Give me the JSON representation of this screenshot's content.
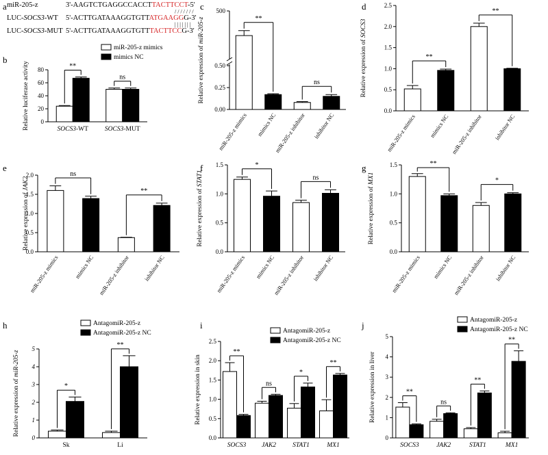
{
  "figure": {
    "styles": {
      "bar_open": "#ffffff",
      "bar_filled": "#000000",
      "axis": "#000000",
      "seq_highlight": "#d62728"
    },
    "panels": {
      "a": {
        "letter": "a",
        "rows": [
          {
            "label_pre": "miR-205-z",
            "label_italic": "",
            "label_post": "",
            "seq_pre": "3'-AAGTCTGAGGCCACCT",
            "seq_hl": "TACTTCCT",
            "seq_post": "-5'"
          },
          {
            "label_pre": "LUC-",
            "label_italic": "SOCS3",
            "label_post": "-WT",
            "seq_pre": "5'-ACTTGATAAAGGTGTT",
            "seq_hl": "ATGAAGG",
            "seq_post": "G-3'"
          },
          {
            "label_pre": "LUC-",
            "label_italic": "SOCS3",
            "label_post": "-MUT",
            "seq_pre": "5'-ACTTGATAAAGGTGTT",
            "seq_hl": "TACTTCC",
            "seq_post": "G-3'"
          }
        ],
        "pairing_marks": "/ / / / / / /",
        "pairing_marks_2": "| | | | | | |"
      }
    }
  },
  "chart_data": [
    {
      "panel": "b",
      "type": "bar",
      "ylabel": "Relative luciferase activity",
      "ylabel_italic": "",
      "ylim": [
        0,
        80
      ],
      "yticks": [
        "0",
        "20",
        "40",
        "60",
        "80"
      ],
      "categories": [
        {
          "pre": "",
          "it": "SOCS3",
          "post": "-WT"
        },
        {
          "pre": "",
          "it": "SOCS3",
          "post": "-MUT"
        }
      ],
      "series": [
        {
          "name": "miR-205-z mimics",
          "style": "open",
          "values": [
            24,
            50
          ],
          "errors": [
            1,
            2
          ]
        },
        {
          "name": "mimics NC",
          "style": "filled",
          "values": [
            67,
            50
          ],
          "errors": [
            2,
            2
          ]
        }
      ],
      "sig": [
        {
          "a": [
            0,
            0
          ],
          "b": [
            0,
            1
          ],
          "label": "**"
        },
        {
          "a": [
            1,
            0
          ],
          "b": [
            1,
            1
          ],
          "label": "ns"
        }
      ]
    },
    {
      "panel": "c",
      "type": "bar",
      "broken": true,
      "ylabel": "Relative expression of ",
      "ylabel_italic": "miR-205-z",
      "ylim": [
        0,
        0.5
      ],
      "ylim_upper": [
        400,
        500
      ],
      "yticks": [
        "0.00",
        "0.25",
        "0.50"
      ],
      "yticks_upper": [
        "500"
      ],
      "categories_rot": [
        "miR-205-z mimics",
        "mimics NC",
        "miR-205-z inhibitor",
        "inhibitor NC"
      ],
      "bars": [
        {
          "value": 450,
          "error": 10,
          "style": "open"
        },
        {
          "value": 0.17,
          "error": 0.01,
          "style": "filled"
        },
        {
          "value": 0.08,
          "error": 0.01,
          "style": "open"
        },
        {
          "value": 0.15,
          "error": 0.02,
          "style": "filled"
        }
      ],
      "sig": [
        {
          "a": 0,
          "b": 1,
          "label": "**"
        },
        {
          "a": 2,
          "b": 3,
          "label": "ns"
        }
      ]
    },
    {
      "panel": "d",
      "type": "bar",
      "ylabel": "Relative expression of ",
      "ylabel_italic": "SOCS3",
      "ylim": [
        0,
        2.5
      ],
      "yticks": [
        "0.0",
        "0.5",
        "1.0",
        "1.5",
        "2.0",
        "2.5"
      ],
      "categories_rot": [
        "miR-205-z mimics",
        "mimics NC",
        "miR-205-z inhibitor",
        "inhibitor NC"
      ],
      "bars": [
        {
          "value": 0.52,
          "error": 0.08,
          "style": "open"
        },
        {
          "value": 0.96,
          "error": 0.03,
          "style": "filled"
        },
        {
          "value": 2.0,
          "error": 0.08,
          "style": "open"
        },
        {
          "value": 1.0,
          "error": 0.01,
          "style": "filled"
        }
      ],
      "sig": [
        {
          "a": 0,
          "b": 1,
          "label": "**"
        },
        {
          "a": 2,
          "b": 3,
          "label": "**"
        }
      ]
    },
    {
      "panel": "e",
      "type": "bar",
      "ylabel": "Relative expression of ",
      "ylabel_italic": "JAK2",
      "ylim": [
        0,
        2.0
      ],
      "yticks": [
        "0.0",
        "0.5",
        "1.0",
        "1.5",
        "2.0"
      ],
      "categories_rot": [
        "miR-205-z mimics",
        "mimics NC",
        "miR-205-z inhibitor",
        "inhibitor NC"
      ],
      "bars": [
        {
          "value": 1.6,
          "error": 0.12,
          "style": "open"
        },
        {
          "value": 1.39,
          "error": 0.06,
          "style": "filled"
        },
        {
          "value": 0.37,
          "error": 0.01,
          "style": "open"
        },
        {
          "value": 1.21,
          "error": 0.06,
          "style": "filled"
        }
      ],
      "sig": [
        {
          "a": 0,
          "b": 1,
          "label": "ns"
        },
        {
          "a": 2,
          "b": 3,
          "label": "**"
        }
      ]
    },
    {
      "panel": "f",
      "type": "bar",
      "ylabel": "Relative expression of ",
      "ylabel_italic": "STAT1",
      "ylim": [
        0,
        1.5
      ],
      "yticks": [
        "0.0",
        "0.5",
        "1.0",
        "1.5"
      ],
      "categories_rot": [
        "miR-205-z mimics",
        "mimics NC",
        "miR-205-z inhibitor",
        "inhibitor NC"
      ],
      "bars": [
        {
          "value": 1.25,
          "error": 0.04,
          "style": "open"
        },
        {
          "value": 0.96,
          "error": 0.09,
          "style": "filled"
        },
        {
          "value": 0.85,
          "error": 0.04,
          "style": "open"
        },
        {
          "value": 1.01,
          "error": 0.06,
          "style": "filled"
        }
      ],
      "sig": [
        {
          "a": 0,
          "b": 1,
          "label": "*"
        },
        {
          "a": 2,
          "b": 3,
          "label": "ns"
        }
      ]
    },
    {
      "panel": "g",
      "type": "bar",
      "ylabel": "Relative expression of ",
      "ylabel_italic": "MX1",
      "ylim": [
        0,
        1.5
      ],
      "yticks": [
        "0.0",
        "0.5",
        "1.0",
        "1.5"
      ],
      "categories_rot": [
        "miR-205-z mimics",
        "mimics NC",
        "miR-205-z inhibitor",
        "inhibitor NC"
      ],
      "bars": [
        {
          "value": 1.3,
          "error": 0.05,
          "style": "open"
        },
        {
          "value": 0.97,
          "error": 0.03,
          "style": "filled"
        },
        {
          "value": 0.8,
          "error": 0.05,
          "style": "open"
        },
        {
          "value": 1.0,
          "error": 0.02,
          "style": "filled"
        }
      ],
      "sig": [
        {
          "a": 0,
          "b": 1,
          "label": "**"
        },
        {
          "a": 2,
          "b": 3,
          "label": "*"
        }
      ]
    },
    {
      "panel": "h",
      "type": "bar",
      "ylabel": "Relative expression of ",
      "ylabel_italic": "miR-205-z",
      "ylim": [
        0,
        5
      ],
      "yticks": [
        "0",
        "1",
        "2",
        "3",
        "4",
        "5"
      ],
      "italic_ticks": true,
      "categories": [
        {
          "pre": "Sk",
          "it": "",
          "post": ""
        },
        {
          "pre": "Li",
          "it": "",
          "post": ""
        }
      ],
      "series": [
        {
          "name": "AntagomiR-205-z",
          "style": "open",
          "values": [
            0.38,
            0.3
          ],
          "errors": [
            0.06,
            0.08
          ]
        },
        {
          "name": "AntagomiR-205-z NC",
          "style": "filled",
          "values": [
            2.05,
            4.0
          ],
          "errors": [
            0.25,
            0.62
          ]
        }
      ],
      "sig": [
        {
          "a": [
            0,
            0
          ],
          "b": [
            0,
            1
          ],
          "label": "*"
        },
        {
          "a": [
            1,
            0
          ],
          "b": [
            1,
            1
          ],
          "label": "**"
        }
      ]
    },
    {
      "panel": "i",
      "type": "bar",
      "ylabel": "Relative expression in skin",
      "ylabel_italic": "",
      "ylim": [
        0,
        2.5
      ],
      "yticks": [
        "0.0",
        "0.5",
        "1.0",
        "1.5",
        "2.0",
        "2.5"
      ],
      "categories": [
        {
          "pre": "",
          "it": "SOCS3",
          "post": ""
        },
        {
          "pre": "",
          "it": "JAK2",
          "post": ""
        },
        {
          "pre": "",
          "it": "STAT1",
          "post": ""
        },
        {
          "pre": "",
          "it": "MX1",
          "post": ""
        }
      ],
      "series": [
        {
          "name": "AntagomiR-205-z",
          "style": "open",
          "values": [
            1.72,
            0.9,
            0.77,
            0.7
          ],
          "errors": [
            0.23,
            0.05,
            0.12,
            0.29
          ]
        },
        {
          "name": "AntagomiR-205-z  NC",
          "style": "filled",
          "values": [
            0.58,
            1.1,
            1.32,
            1.63
          ],
          "errors": [
            0.03,
            0.03,
            0.1,
            0.04
          ]
        }
      ],
      "sig": [
        {
          "a": [
            0,
            0
          ],
          "b": [
            0,
            1
          ],
          "label": "**"
        },
        {
          "a": [
            1,
            0
          ],
          "b": [
            1,
            1
          ],
          "label": "ns"
        },
        {
          "a": [
            2,
            0
          ],
          "b": [
            2,
            1
          ],
          "label": "*"
        },
        {
          "a": [
            3,
            0
          ],
          "b": [
            3,
            1
          ],
          "label": "**"
        }
      ]
    },
    {
      "panel": "j",
      "type": "bar",
      "ylabel": "Relative expression in liver",
      "ylabel_italic": "",
      "ylim": [
        0,
        5
      ],
      "yticks": [
        "0",
        "1",
        "2",
        "3",
        "4",
        "5"
      ],
      "categories": [
        {
          "pre": "",
          "it": "SOCS3",
          "post": ""
        },
        {
          "pre": "",
          "it": "JAK2",
          "post": ""
        },
        {
          "pre": "",
          "it": "STAT1",
          "post": ""
        },
        {
          "pre": "",
          "it": "MX1",
          "post": ""
        }
      ],
      "series": [
        {
          "name": "AntagomiR-205-z",
          "style": "open",
          "values": [
            1.52,
            0.82,
            0.45,
            0.25
          ],
          "errors": [
            0.22,
            0.1,
            0.06,
            0.08
          ]
        },
        {
          "name": "AntagomiR-205-z  NC",
          "style": "filled",
          "values": [
            0.65,
            1.2,
            2.22,
            3.78
          ],
          "errors": [
            0.04,
            0.04,
            0.1,
            0.52
          ]
        }
      ],
      "sig": [
        {
          "a": [
            0,
            0
          ],
          "b": [
            0,
            1
          ],
          "label": "**"
        },
        {
          "a": [
            1,
            0
          ],
          "b": [
            1,
            1
          ],
          "label": "ns"
        },
        {
          "a": [
            2,
            0
          ],
          "b": [
            2,
            1
          ],
          "label": "**"
        },
        {
          "a": [
            3,
            0
          ],
          "b": [
            3,
            1
          ],
          "label": "**"
        }
      ]
    }
  ]
}
